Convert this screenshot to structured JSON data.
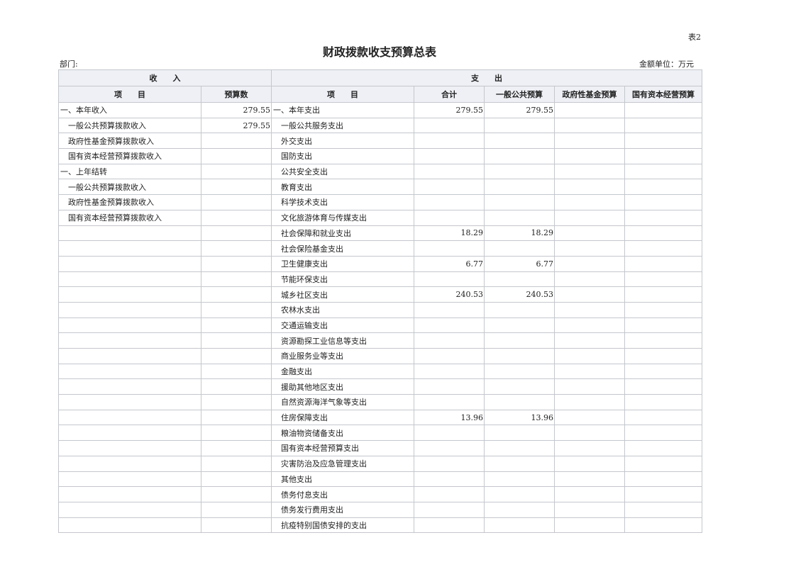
{
  "page_tag": "表2",
  "title": "财政拨款收支预算总表",
  "department_label": "部门:",
  "unit_label": "金额单位：万元",
  "headers": {
    "income_group": "收　　入",
    "expense_group": "支　　出",
    "income_item": "项　　目",
    "income_budget": "预算数",
    "expense_item": "项　　目",
    "total": "合计",
    "general_public": "一般公共预算",
    "gov_fund": "政府性基金预算",
    "state_capital": "国有资本经营预算"
  },
  "rows": [
    {
      "income_item": "一、本年收入",
      "income_indent": false,
      "income_amount": "279.55",
      "expense_item": "一、本年支出",
      "expense_indent": false,
      "total": "279.55",
      "general": "279.55",
      "fund": "",
      "capital": ""
    },
    {
      "income_item": "一般公共预算拨款收入",
      "income_indent": true,
      "income_amount": "279.55",
      "expense_item": "一般公共服务支出",
      "expense_indent": true,
      "total": "",
      "general": "",
      "fund": "",
      "capital": ""
    },
    {
      "income_item": "政府性基金预算拨款收入",
      "income_indent": true,
      "income_amount": "",
      "expense_item": "外交支出",
      "expense_indent": true,
      "total": "",
      "general": "",
      "fund": "",
      "capital": ""
    },
    {
      "income_item": "国有资本经营预算拨款收入",
      "income_indent": true,
      "income_amount": "",
      "expense_item": "国防支出",
      "expense_indent": true,
      "total": "",
      "general": "",
      "fund": "",
      "capital": ""
    },
    {
      "income_item": "一、上年结转",
      "income_indent": false,
      "income_amount": "",
      "expense_item": "公共安全支出",
      "expense_indent": true,
      "total": "",
      "general": "",
      "fund": "",
      "capital": ""
    },
    {
      "income_item": "一般公共预算拨款收入",
      "income_indent": true,
      "income_amount": "",
      "expense_item": "教育支出",
      "expense_indent": true,
      "total": "",
      "general": "",
      "fund": "",
      "capital": ""
    },
    {
      "income_item": "政府性基金预算拨款收入",
      "income_indent": true,
      "income_amount": "",
      "expense_item": "科学技术支出",
      "expense_indent": true,
      "total": "",
      "general": "",
      "fund": "",
      "capital": ""
    },
    {
      "income_item": "国有资本经营预算拨款收入",
      "income_indent": true,
      "income_amount": "",
      "expense_item": "文化旅游体育与传媒支出",
      "expense_indent": true,
      "total": "",
      "general": "",
      "fund": "",
      "capital": ""
    },
    {
      "income_item": "",
      "income_amount": "",
      "expense_item": "社会保障和就业支出",
      "expense_indent": true,
      "total": "18.29",
      "general": "18.29",
      "fund": "",
      "capital": ""
    },
    {
      "income_item": "",
      "income_amount": "",
      "expense_item": "社会保险基金支出",
      "expense_indent": true,
      "total": "",
      "general": "",
      "fund": "",
      "capital": ""
    },
    {
      "income_item": "",
      "income_amount": "",
      "expense_item": "卫生健康支出",
      "expense_indent": true,
      "total": "6.77",
      "general": "6.77",
      "fund": "",
      "capital": ""
    },
    {
      "income_item": "",
      "income_amount": "",
      "expense_item": "节能环保支出",
      "expense_indent": true,
      "total": "",
      "general": "",
      "fund": "",
      "capital": ""
    },
    {
      "income_item": "",
      "income_amount": "",
      "expense_item": "城乡社区支出",
      "expense_indent": true,
      "total": "240.53",
      "general": "240.53",
      "fund": "",
      "capital": ""
    },
    {
      "income_item": "",
      "income_amount": "",
      "expense_item": "农林水支出",
      "expense_indent": true,
      "total": "",
      "general": "",
      "fund": "",
      "capital": ""
    },
    {
      "income_item": "",
      "income_amount": "",
      "expense_item": "交通运输支出",
      "expense_indent": true,
      "total": "",
      "general": "",
      "fund": "",
      "capital": ""
    },
    {
      "income_item": "",
      "income_amount": "",
      "expense_item": "资源勘探工业信息等支出",
      "expense_indent": true,
      "total": "",
      "general": "",
      "fund": "",
      "capital": ""
    },
    {
      "income_item": "",
      "income_amount": "",
      "expense_item": "商业服务业等支出",
      "expense_indent": true,
      "total": "",
      "general": "",
      "fund": "",
      "capital": ""
    },
    {
      "income_item": "",
      "income_amount": "",
      "expense_item": "金融支出",
      "expense_indent": true,
      "total": "",
      "general": "",
      "fund": "",
      "capital": ""
    },
    {
      "income_item": "",
      "income_amount": "",
      "expense_item": "援助其他地区支出",
      "expense_indent": true,
      "total": "",
      "general": "",
      "fund": "",
      "capital": ""
    },
    {
      "income_item": "",
      "income_amount": "",
      "expense_item": "自然资源海洋气象等支出",
      "expense_indent": true,
      "total": "",
      "general": "",
      "fund": "",
      "capital": ""
    },
    {
      "income_item": "",
      "income_amount": "",
      "expense_item": "住房保障支出",
      "expense_indent": true,
      "total": "13.96",
      "general": "13.96",
      "fund": "",
      "capital": ""
    },
    {
      "income_item": "",
      "income_amount": "",
      "expense_item": "粮油物资储备支出",
      "expense_indent": true,
      "total": "",
      "general": "",
      "fund": "",
      "capital": ""
    },
    {
      "income_item": "",
      "income_amount": "",
      "expense_item": "国有资本经营预算支出",
      "expense_indent": true,
      "total": "",
      "general": "",
      "fund": "",
      "capital": ""
    },
    {
      "income_item": "",
      "income_amount": "",
      "expense_item": "灾害防治及应急管理支出",
      "expense_indent": true,
      "total": "",
      "general": "",
      "fund": "",
      "capital": ""
    },
    {
      "income_item": "",
      "income_amount": "",
      "expense_item": "其他支出",
      "expense_indent": true,
      "total": "",
      "general": "",
      "fund": "",
      "capital": ""
    },
    {
      "income_item": "",
      "income_amount": "",
      "expense_item": "债务付息支出",
      "expense_indent": true,
      "total": "",
      "general": "",
      "fund": "",
      "capital": ""
    },
    {
      "income_item": "",
      "income_amount": "",
      "expense_item": "债务发行费用支出",
      "expense_indent": true,
      "total": "",
      "general": "",
      "fund": "",
      "capital": ""
    },
    {
      "income_item": "",
      "income_amount": "",
      "expense_item": "抗疫特别国债安排的支出",
      "expense_indent": true,
      "total": "",
      "general": "",
      "fund": "",
      "capital": ""
    }
  ]
}
